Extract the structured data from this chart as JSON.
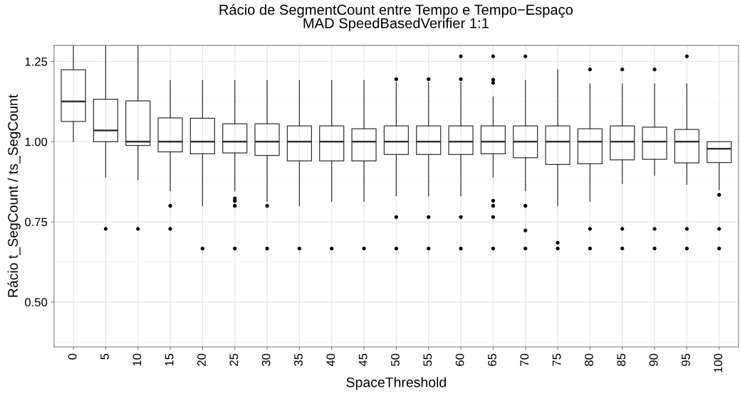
{
  "chart_data": {
    "type": "box",
    "title": "Rácio de SegmentCount entre Tempo e Tempo−Espaço",
    "subtitle": "MAD SpeedBasedVerifier 1:1",
    "xlabel": "SpaceThreshold",
    "ylabel": "Rácio t_SegCount / ts_SegCount",
    "categories": [
      "0",
      "5",
      "10",
      "15",
      "20",
      "25",
      "30",
      "35",
      "40",
      "45",
      "50",
      "55",
      "60",
      "65",
      "70",
      "75",
      "80",
      "85",
      "90",
      "95",
      "100"
    ],
    "ylim": [
      0.36,
      1.3
    ],
    "yticks": [
      {
        "value": 0.5,
        "label": "0.50"
      },
      0.75,
      {
        "value": 1.0,
        "label": "1.00"
      },
      1.25
    ],
    "grid": true,
    "boxes": [
      {
        "low": 1.0,
        "q1": 1.063,
        "median": 1.125,
        "q3": 1.224,
        "high": 1.3
      },
      {
        "low": 0.89,
        "q1": 1.0,
        "median": 1.035,
        "q3": 1.132,
        "high": 1.3,
        "outliers": [
          0.728
        ]
      },
      {
        "low": 0.881,
        "q1": 0.988,
        "median": 1.0,
        "q3": 1.127,
        "high": 1.3,
        "outliers": [
          0.728
        ]
      },
      {
        "low": 0.847,
        "q1": 0.968,
        "median": 1.0,
        "q3": 1.074,
        "high": 1.191,
        "outliers": [
          0.8,
          0.728
        ]
      },
      {
        "low": 0.8,
        "q1": 0.962,
        "median": 1.0,
        "q3": 1.073,
        "high": 1.191,
        "outliers": [
          0.667
        ]
      },
      {
        "low": 0.847,
        "q1": 0.965,
        "median": 1.0,
        "q3": 1.056,
        "high": 1.191,
        "outliers": [
          0.823,
          0.815,
          0.8,
          0.667
        ]
      },
      {
        "low": 0.814,
        "q1": 0.957,
        "median": 1.0,
        "q3": 1.056,
        "high": 1.191,
        "outliers": [
          0.8,
          0.667
        ]
      },
      {
        "low": 0.8,
        "q1": 0.94,
        "median": 1.0,
        "q3": 1.049,
        "high": 1.191,
        "outliers": [
          0.667
        ]
      },
      {
        "low": 0.814,
        "q1": 0.94,
        "median": 1.0,
        "q3": 1.049,
        "high": 1.191,
        "outliers": [
          0.667
        ]
      },
      {
        "low": 0.814,
        "q1": 0.94,
        "median": 1.0,
        "q3": 1.04,
        "high": 1.191,
        "outliers": [
          0.667
        ]
      },
      {
        "low": 0.831,
        "q1": 0.96,
        "median": 1.0,
        "q3": 1.049,
        "high": 1.185,
        "outliers": [
          1.195,
          0.765,
          0.667
        ]
      },
      {
        "low": 0.831,
        "q1": 0.96,
        "median": 1.0,
        "q3": 1.049,
        "high": 1.185,
        "outliers": [
          1.195,
          0.765,
          0.667
        ]
      },
      {
        "low": 0.831,
        "q1": 0.96,
        "median": 1.0,
        "q3": 1.049,
        "high": 1.185,
        "outliers": [
          1.266,
          1.195,
          0.765,
          0.667
        ]
      },
      {
        "low": 0.89,
        "q1": 0.962,
        "median": 1.0,
        "q3": 1.049,
        "high": 1.14,
        "outliers": [
          1.266,
          1.193,
          1.183,
          0.816,
          0.8,
          0.765,
          0.667
        ]
      },
      {
        "low": 0.847,
        "q1": 0.95,
        "median": 1.0,
        "q3": 1.049,
        "high": 1.191,
        "outliers": [
          1.266,
          0.8,
          0.723,
          0.667
        ]
      },
      {
        "low": 0.8,
        "q1": 0.929,
        "median": 1.0,
        "q3": 1.049,
        "high": 1.224,
        "outliers": [
          0.685,
          0.667
        ]
      },
      {
        "low": 0.814,
        "q1": 0.931,
        "median": 1.0,
        "q3": 1.04,
        "high": 1.18,
        "outliers": [
          1.225,
          0.728,
          0.667
        ]
      },
      {
        "low": 0.869,
        "q1": 0.943,
        "median": 1.0,
        "q3": 1.049,
        "high": 1.18,
        "outliers": [
          1.225,
          0.728,
          0.667
        ]
      },
      {
        "low": 0.895,
        "q1": 0.945,
        "median": 1.0,
        "q3": 1.045,
        "high": 1.18,
        "outliers": [
          1.225,
          0.728,
          0.667
        ]
      },
      {
        "low": 0.867,
        "q1": 0.934,
        "median": 1.0,
        "q3": 1.038,
        "high": 1.18,
        "outliers": [
          1.266,
          0.728,
          0.667
        ]
      },
      {
        "low": 0.85,
        "q1": 0.935,
        "median": 0.978,
        "q3": 1.0,
        "high": 1.0,
        "outliers": [
          0.834,
          0.728,
          0.667
        ]
      }
    ]
  }
}
